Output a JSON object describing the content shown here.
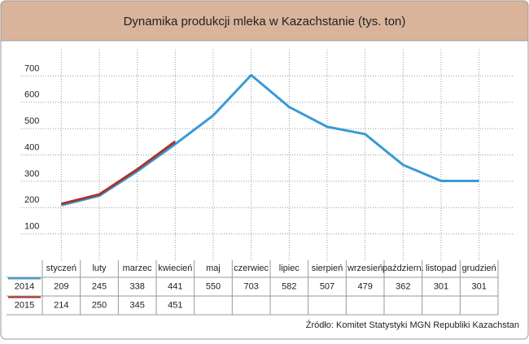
{
  "chart_data": {
    "type": "line",
    "title": "Dynamika produkcji mleka w Kazachstanie (tys. ton)",
    "categories": [
      "styczeń",
      "luty",
      "marzec",
      "kwiecień",
      "maj",
      "czerwiec",
      "lipiec",
      "sierpień",
      "wrzesień",
      "październ.",
      "listopad",
      "grudzień"
    ],
    "series": [
      {
        "name": "2014",
        "color": "#3a9ad6",
        "values": [
          209,
          245,
          338,
          441,
          550,
          703,
          582,
          507,
          479,
          362,
          301,
          301
        ]
      },
      {
        "name": "2015",
        "color": "#a8342a",
        "values": [
          214,
          250,
          345,
          451,
          null,
          null,
          null,
          null,
          null,
          null,
          null,
          null
        ]
      }
    ],
    "ylim": [
      0,
      800
    ],
    "yticks": [
      100,
      200,
      300,
      400,
      500,
      600,
      700
    ],
    "grid": true,
    "source": "Źródło: Komitet Statystyki MGN Republiki Kazachstan"
  }
}
